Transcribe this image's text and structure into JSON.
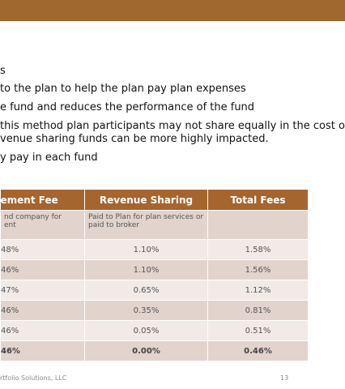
{
  "body": {
    "lines": [
      "s",
      "to the plan to help the plan pay plan expenses",
      "e fund and reduces the performance of the fund",
      "this method plan participants may not share equally in the cost of",
      "venue sharing funds can be more highly impacted.",
      "y pay in each fund"
    ]
  },
  "table": {
    "header": [
      "ement Fee",
      "Revenue Sharing",
      "Total Fees"
    ],
    "rows": [
      [
        "nd company for\nent",
        "Paid to Plan for plan services or\npaid to broker"
      ],
      [
        "48%",
        "1.10%",
        "1.58%"
      ],
      [
        "46%",
        "1.10%",
        "1.56%"
      ],
      [
        "47%",
        "0.65%",
        "1.12%"
      ],
      [
        "46%",
        "0.35%",
        "0.81%"
      ],
      [
        "46%",
        "0.05%",
        "0.51%"
      ],
      [
        "46%",
        "0.00%",
        "0.46%"
      ]
    ]
  },
  "footer": {
    "source": "rtfolio Solutions, LLC",
    "page": "13"
  }
}
